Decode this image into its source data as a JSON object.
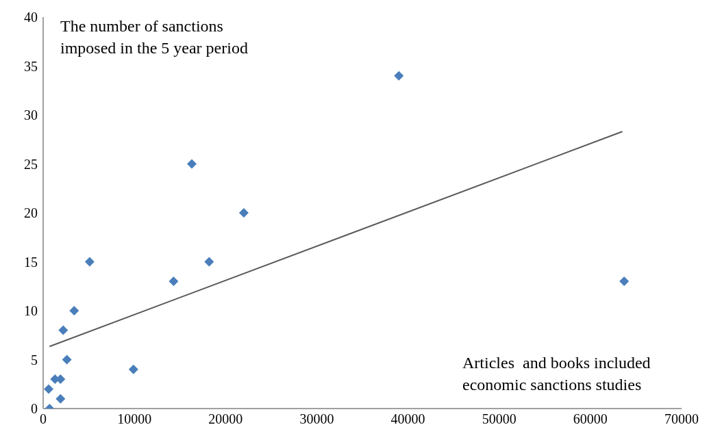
{
  "chart_data": {
    "type": "scatter",
    "ylabel": "The number of sanctions imposed in the 5 year period",
    "xlabel": "Articles  and books included economic sanctions studies",
    "xlim": [
      0,
      70000
    ],
    "xticks": [
      0,
      10000,
      20000,
      30000,
      40000,
      50000,
      60000,
      70000
    ],
    "ylim": [
      0,
      40
    ],
    "yticks": [
      0,
      5,
      10,
      15,
      20,
      25,
      30,
      35,
      40
    ],
    "grid": false,
    "legend": false,
    "marker": "diamond",
    "series": [
      {
        "color": "#4a7ebb",
        "x": [
          700,
          600,
          1300,
          1900,
          1900,
          2200,
          2600,
          3400,
          5100,
          9900,
          14300,
          16300,
          18200,
          22000,
          39000,
          63700
        ],
        "values": [
          0,
          2,
          3,
          1,
          3,
          8,
          5,
          10,
          15,
          4,
          13,
          25,
          15,
          20,
          34,
          13
        ]
      },
      {
        "type": "line",
        "color": "#595959",
        "marker": "none",
        "line_style": "solid",
        "x": [
          700,
          63500
        ],
        "values": [
          6.35,
          28.3
        ]
      }
    ]
  }
}
